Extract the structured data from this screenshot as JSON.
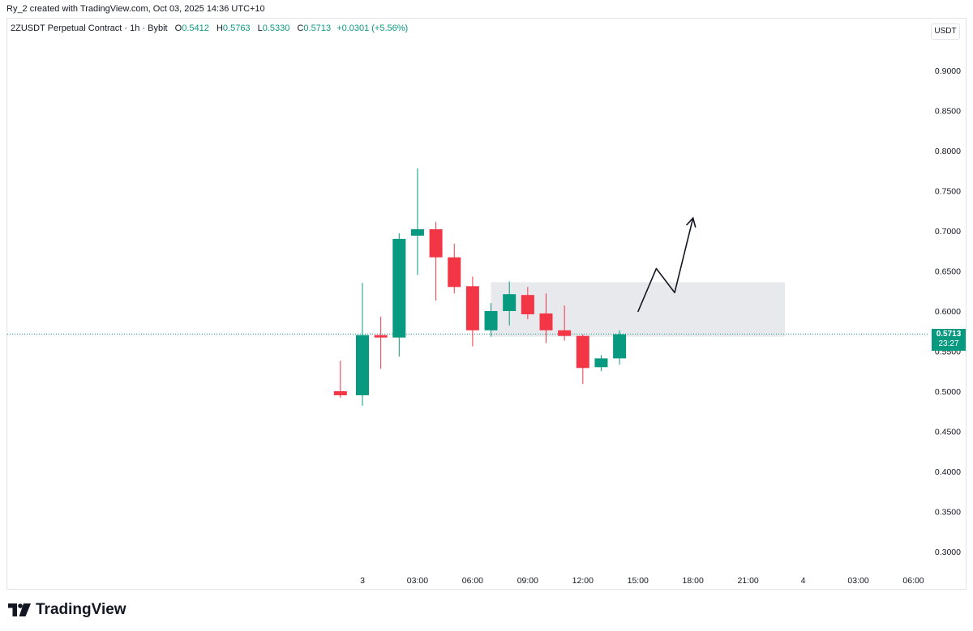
{
  "credit": "Ry_2 created with TradingView.com, Oct 03, 2025 14:36 UTC+10",
  "legend": {
    "symbol": "2ZUSDT Perpetual Contract · 1h · Bybit",
    "open_key": "O",
    "open": "0.5412",
    "high_key": "H",
    "high": "0.5763",
    "low_key": "L",
    "low": "0.5330",
    "close_key": "C",
    "close": "0.5713",
    "change": "+0.0301 (+5.56%)"
  },
  "currency": "USDT",
  "last_price": {
    "price": "0.5713",
    "countdown": "23:27",
    "color": "#089981"
  },
  "brand": "TradingView",
  "colors": {
    "up": "#089981",
    "down": "#f23645",
    "zone": "#e6e7ea",
    "arrow": "#131722"
  },
  "chart_data": {
    "type": "candlestick",
    "timeframe": "1h",
    "y_axis": {
      "ticks": [
        "0.9000",
        "0.8500",
        "0.8000",
        "0.7500",
        "0.7000",
        "0.6500",
        "0.6000",
        "0.5500",
        "0.5000",
        "0.4500",
        "0.4000",
        "0.3500",
        "0.3000"
      ]
    },
    "x_axis": {
      "ticks": [
        {
          "label": "3",
          "t": 0
        },
        {
          "label": "03:00",
          "t": 3
        },
        {
          "label": "06:00",
          "t": 6
        },
        {
          "label": "09:00",
          "t": 9
        },
        {
          "label": "12:00",
          "t": 12
        },
        {
          "label": "15:00",
          "t": 15
        },
        {
          "label": "18:00",
          "t": 18
        },
        {
          "label": "21:00",
          "t": 21
        },
        {
          "label": "4",
          "t": 24
        },
        {
          "label": "03:00",
          "t": 27
        },
        {
          "label": "06:00",
          "t": 30
        }
      ]
    },
    "candles": [
      {
        "t": -1.2,
        "o": 0.5,
        "h": 0.538,
        "l": 0.492,
        "c": 0.495
      },
      {
        "t": 0,
        "o": 0.495,
        "h": 0.635,
        "l": 0.482,
        "c": 0.57
      },
      {
        "t": 1,
        "o": 0.57,
        "h": 0.593,
        "l": 0.528,
        "c": 0.567
      },
      {
        "t": 2,
        "o": 0.567,
        "h": 0.697,
        "l": 0.543,
        "c": 0.69
      },
      {
        "t": 3,
        "o": 0.694,
        "h": 0.778,
        "l": 0.645,
        "c": 0.702
      },
      {
        "t": 4,
        "o": 0.702,
        "h": 0.711,
        "l": 0.613,
        "c": 0.667
      },
      {
        "t": 5,
        "o": 0.667,
        "h": 0.684,
        "l": 0.622,
        "c": 0.63
      },
      {
        "t": 6,
        "o": 0.631,
        "h": 0.643,
        "l": 0.556,
        "c": 0.576
      },
      {
        "t": 7,
        "o": 0.576,
        "h": 0.61,
        "l": 0.568,
        "c": 0.6
      },
      {
        "t": 8,
        "o": 0.6,
        "h": 0.637,
        "l": 0.582,
        "c": 0.621
      },
      {
        "t": 9,
        "o": 0.62,
        "h": 0.63,
        "l": 0.59,
        "c": 0.596
      },
      {
        "t": 10,
        "o": 0.597,
        "h": 0.622,
        "l": 0.56,
        "c": 0.576
      },
      {
        "t": 11,
        "o": 0.576,
        "h": 0.607,
        "l": 0.563,
        "c": 0.569
      },
      {
        "t": 12,
        "o": 0.569,
        "h": 0.571,
        "l": 0.509,
        "c": 0.529
      },
      {
        "t": 13,
        "o": 0.53,
        "h": 0.545,
        "l": 0.525,
        "c": 0.541
      },
      {
        "t": 14,
        "o": 0.541,
        "h": 0.576,
        "l": 0.533,
        "c": 0.571
      }
    ],
    "zone": {
      "t_start": 7.0,
      "t_end": 23.0,
      "price_low": 0.568,
      "price_high": 0.636
    },
    "projection": [
      {
        "t": 15,
        "p": 0.599
      },
      {
        "t": 16,
        "p": 0.653
      },
      {
        "t": 17,
        "p": 0.623
      },
      {
        "t": 18,
        "p": 0.716
      }
    ],
    "last_price_line": 0.5713
  }
}
